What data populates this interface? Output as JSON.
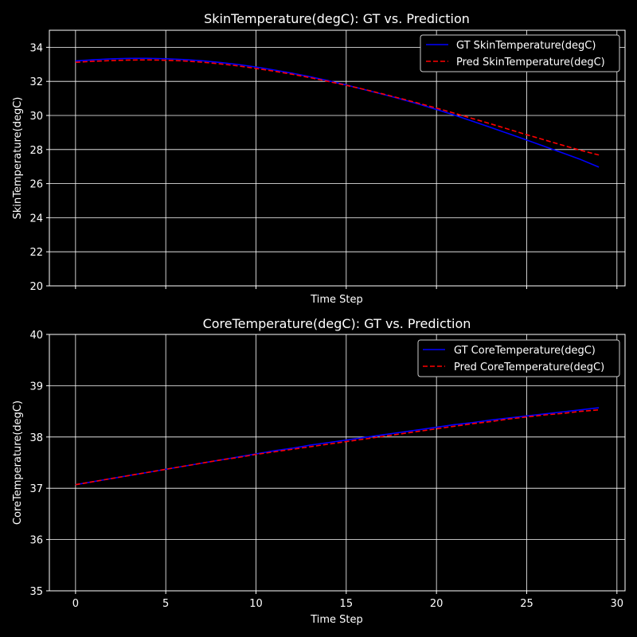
{
  "chart_data": [
    {
      "type": "line",
      "title": "SkinTemperature(degC): GT vs. Prediction",
      "xlabel": "Time Step",
      "ylabel": "SkinTemperature(degC)",
      "xlim": [
        -1.45,
        30.45
      ],
      "ylim": [
        20,
        35
      ],
      "xticks": [
        0,
        5,
        10,
        15,
        20,
        25,
        30
      ],
      "yticks": [
        20,
        22,
        24,
        26,
        28,
        30,
        32,
        34
      ],
      "show_xtick_labels": false,
      "grid": true,
      "legend_position": "top-right",
      "x": [
        0,
        1,
        2,
        3,
        4,
        5,
        6,
        7,
        8,
        9,
        10,
        11,
        12,
        13,
        14,
        15,
        16,
        17,
        18,
        19,
        20,
        21,
        22,
        23,
        24,
        25,
        26,
        27,
        28,
        29
      ],
      "series": [
        {
          "name": "GT SkinTemperature(degC)",
          "color": "#0000ff",
          "dash": "solid",
          "values": [
            33.2,
            33.27,
            33.32,
            33.35,
            33.35,
            33.33,
            33.28,
            33.21,
            33.11,
            32.99,
            32.84,
            32.67,
            32.48,
            32.27,
            32.04,
            31.79,
            31.52,
            31.25,
            30.97,
            30.67,
            30.35,
            30.02,
            29.66,
            29.3,
            28.93,
            28.56,
            28.18,
            27.8,
            27.41,
            26.97
          ]
        },
        {
          "name": "Pred SkinTemperature(degC)",
          "color": "#ff0000",
          "dash": "dashed",
          "values": [
            33.12,
            33.18,
            33.22,
            33.25,
            33.26,
            33.24,
            33.2,
            33.13,
            33.03,
            32.91,
            32.76,
            32.6,
            32.42,
            32.22,
            32.0,
            31.77,
            31.53,
            31.27,
            31.0,
            30.72,
            30.43,
            30.13,
            29.82,
            29.51,
            29.19,
            28.87,
            28.56,
            28.25,
            27.95,
            27.68
          ]
        }
      ]
    },
    {
      "type": "line",
      "title": "CoreTemperature(degC): GT vs. Prediction",
      "xlabel": "Time Step",
      "ylabel": "CoreTemperature(degC)",
      "xlim": [
        -1.45,
        30.45
      ],
      "ylim": [
        35,
        40
      ],
      "xticks": [
        0,
        5,
        10,
        15,
        20,
        25,
        30
      ],
      "yticks": [
        35,
        36,
        37,
        38,
        39,
        40
      ],
      "show_xtick_labels": true,
      "grid": true,
      "legend_position": "top-right",
      "x": [
        0,
        1,
        2,
        3,
        4,
        5,
        6,
        7,
        8,
        9,
        10,
        11,
        12,
        13,
        14,
        15,
        16,
        17,
        18,
        19,
        20,
        21,
        22,
        23,
        24,
        25,
        26,
        27,
        28,
        29
      ],
      "series": [
        {
          "name": "GT CoreTemperature(degC)",
          "color": "#0000ff",
          "dash": "solid",
          "values": [
            37.07,
            37.13,
            37.19,
            37.25,
            37.31,
            37.37,
            37.43,
            37.49,
            37.55,
            37.61,
            37.67,
            37.73,
            37.78,
            37.84,
            37.89,
            37.94,
            37.99,
            38.04,
            38.09,
            38.14,
            38.19,
            38.24,
            38.28,
            38.33,
            38.37,
            38.41,
            38.45,
            38.49,
            38.53,
            38.57
          ]
        },
        {
          "name": "Pred CoreTemperature(degC)",
          "color": "#ff0000",
          "dash": "dashed",
          "values": [
            37.07,
            37.13,
            37.19,
            37.25,
            37.31,
            37.37,
            37.43,
            37.49,
            37.55,
            37.6,
            37.66,
            37.71,
            37.76,
            37.81,
            37.86,
            37.91,
            37.96,
            38.01,
            38.06,
            38.11,
            38.16,
            38.21,
            38.26,
            38.3,
            38.35,
            38.39,
            38.43,
            38.46,
            38.5,
            38.53
          ]
        }
      ]
    }
  ]
}
